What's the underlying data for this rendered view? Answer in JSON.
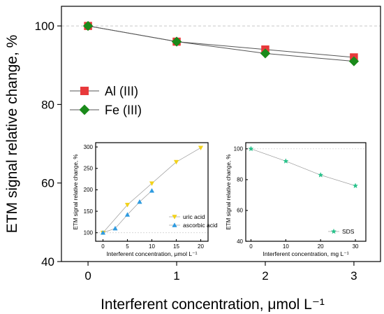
{
  "chart_data": [
    {
      "type": "line",
      "xlabel": "Interferent concentration, μmol L⁻¹",
      "ylabel": "ETM signal relative change, %",
      "xlim": [
        -0.3,
        3.3
      ],
      "ylim": [
        40,
        105
      ],
      "xticks": [
        0,
        1,
        2,
        3
      ],
      "yticks": [
        40,
        60,
        80,
        100
      ],
      "reference_line": 100,
      "legend_position": "left",
      "series": [
        {
          "name": "Al (III)",
          "marker": "square",
          "color": "#e8393b",
          "x": [
            0,
            1,
            2,
            3
          ],
          "y": [
            100,
            96,
            94,
            92
          ]
        },
        {
          "name": "Fe (III)",
          "marker": "diamond",
          "color": "#1a8a1a",
          "x": [
            0,
            1,
            2,
            3
          ],
          "y": [
            100,
            96,
            93,
            91
          ]
        }
      ]
    },
    {
      "type": "line",
      "xlabel": "Interferent concentration, μmol L⁻¹",
      "ylabel": "ETM signal relative change, %",
      "xlim": [
        -1.5,
        21.5
      ],
      "ylim": [
        80,
        310
      ],
      "xticks": [
        0,
        5,
        10,
        15,
        20
      ],
      "yticks": [
        100,
        150,
        200,
        250,
        300
      ],
      "reference_line": 100,
      "legend_position": "bottom-right",
      "series": [
        {
          "name": "uric acid",
          "marker": "triangle-down",
          "color": "#f2d21b",
          "x": [
            0,
            5,
            10,
            15,
            20
          ],
          "y": [
            100,
            165,
            215,
            265,
            298
          ]
        },
        {
          "name": "ascorbic acid",
          "marker": "triangle-up",
          "color": "#2e9be0",
          "x": [
            0,
            2.5,
            5,
            7.5,
            10
          ],
          "y": [
            100,
            110,
            142,
            172,
            198
          ]
        }
      ]
    },
    {
      "type": "line",
      "xlabel": "Interferent concentration, mg L⁻¹",
      "ylabel": "ETM signal relative change, %",
      "xlim": [
        -1.5,
        33
      ],
      "ylim": [
        40,
        104
      ],
      "xticks": [
        0,
        10,
        20,
        30
      ],
      "yticks": [
        40,
        60,
        80,
        100
      ],
      "reference_line": 100,
      "legend_position": "bottom-right",
      "series": [
        {
          "name": "SDS",
          "marker": "star",
          "color": "#27c28a",
          "x": [
            0,
            10,
            20,
            30
          ],
          "y": [
            100,
            92,
            83,
            76
          ]
        }
      ]
    }
  ]
}
